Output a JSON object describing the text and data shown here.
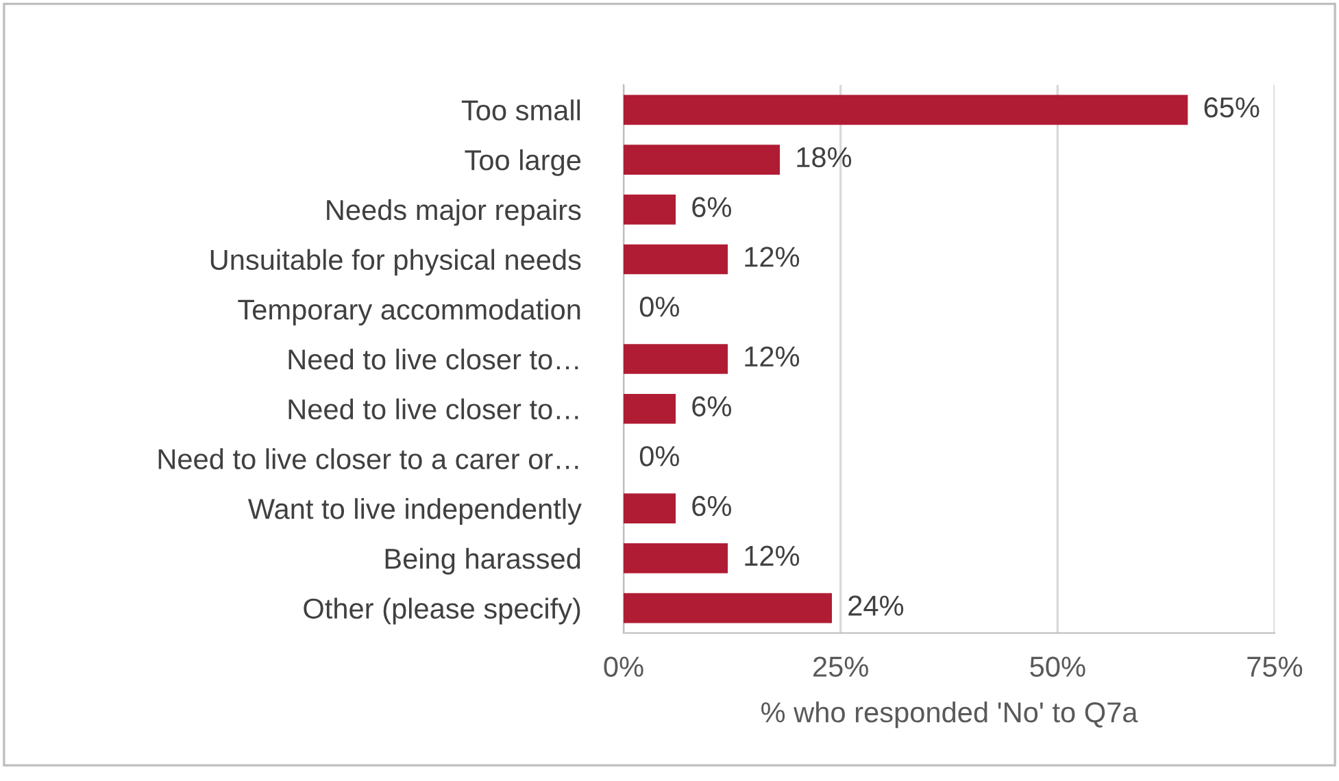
{
  "chart_data": {
    "type": "bar",
    "orientation": "horizontal",
    "xlabel": "% who responded 'No' to Q7a",
    "categories": [
      "Too small",
      "Too large",
      "Needs major repairs",
      "Unsuitable for physical needs",
      "Temporary accommodation",
      "Need to live closer to…",
      "Need to live closer to…",
      "Need to live closer to a carer or…",
      "Want to live independently",
      "Being harassed",
      "Other (please specify)"
    ],
    "values": [
      65,
      18,
      6,
      12,
      0,
      12,
      6,
      0,
      6,
      12,
      24
    ],
    "value_labels": [
      "65%",
      "18%",
      "6%",
      "12%",
      "0%",
      "12%",
      "6%",
      "0%",
      "6%",
      "12%",
      "24%"
    ],
    "color": "#b01c34",
    "xlim": [
      0,
      75
    ],
    "xticks": [
      {
        "value": 0,
        "label": "0%"
      },
      {
        "value": 25,
        "label": "25%"
      },
      {
        "value": 50,
        "label": "50%"
      },
      {
        "value": 75,
        "label": "75%"
      }
    ],
    "grid": "x",
    "legend": false
  }
}
